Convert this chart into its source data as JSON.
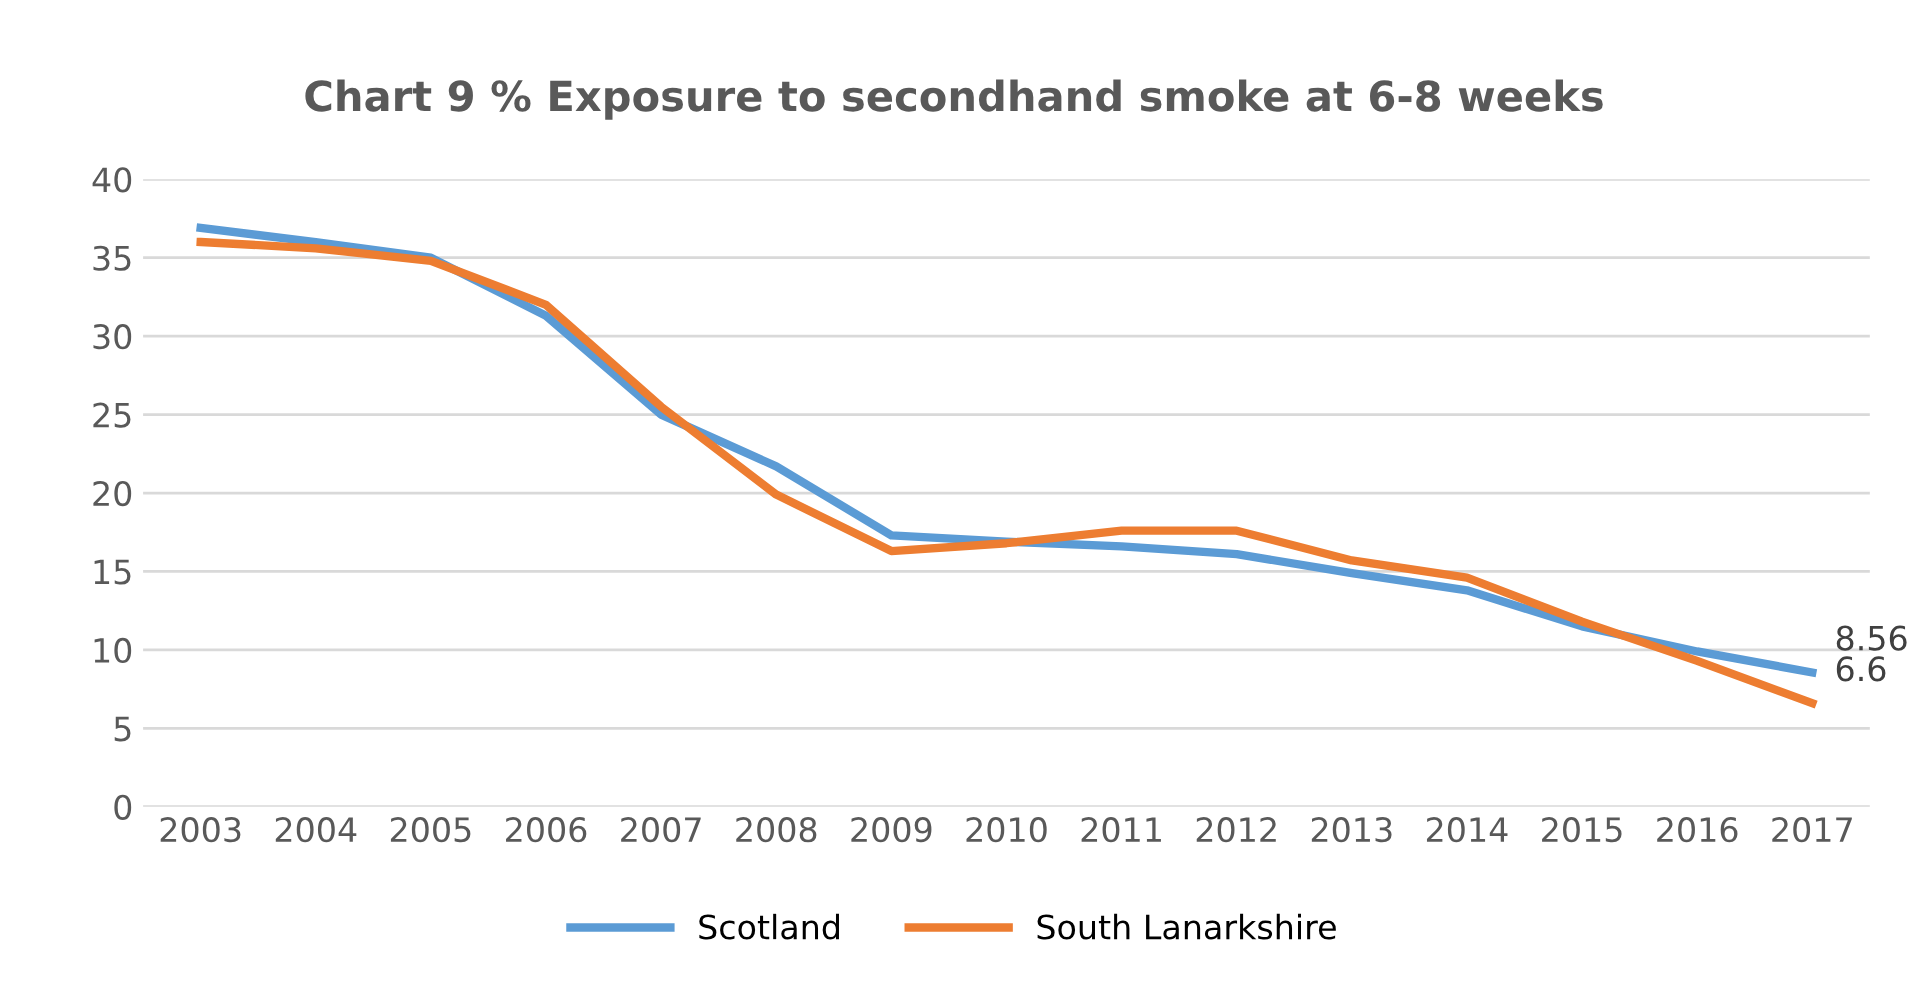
{
  "chart_data": {
    "type": "line",
    "title": "Chart 9 % Exposure to secondhand smoke at 6-8 weeks",
    "categories": [
      "2003",
      "2004",
      "2005",
      "2006",
      "2007",
      "2008",
      "2009",
      "2010",
      "2011",
      "2012",
      "2013",
      "2014",
      "2015",
      "2016",
      "2017"
    ],
    "series": [
      {
        "name": "Scotland",
        "color": "#5b9bd5",
        "values": [
          36.9,
          36.0,
          35.0,
          31.3,
          25.0,
          21.7,
          17.3,
          16.9,
          16.6,
          16.1,
          14.9,
          13.8,
          11.5,
          9.9,
          8.56
        ],
        "value_labels": [
          null,
          null,
          null,
          null,
          null,
          null,
          null,
          null,
          null,
          null,
          null,
          null,
          null,
          null,
          "8.56"
        ]
      },
      {
        "name": "South Lanarkshire",
        "color": "#ed7d31",
        "values": [
          36.0,
          35.6,
          34.8,
          32.0,
          25.5,
          19.9,
          16.3,
          16.8,
          17.6,
          17.6,
          15.7,
          14.6,
          11.8,
          9.3,
          6.6
        ],
        "value_labels": [
          null,
          null,
          null,
          null,
          null,
          null,
          null,
          null,
          null,
          null,
          null,
          null,
          null,
          null,
          "6.6"
        ]
      }
    ],
    "ylim": [
      0,
      40
    ],
    "yticks": [
      0,
      5,
      10,
      15,
      20,
      25,
      30,
      35,
      40
    ],
    "grid": "y",
    "legend": "bottom",
    "marker": "none",
    "line_style": "solid"
  }
}
